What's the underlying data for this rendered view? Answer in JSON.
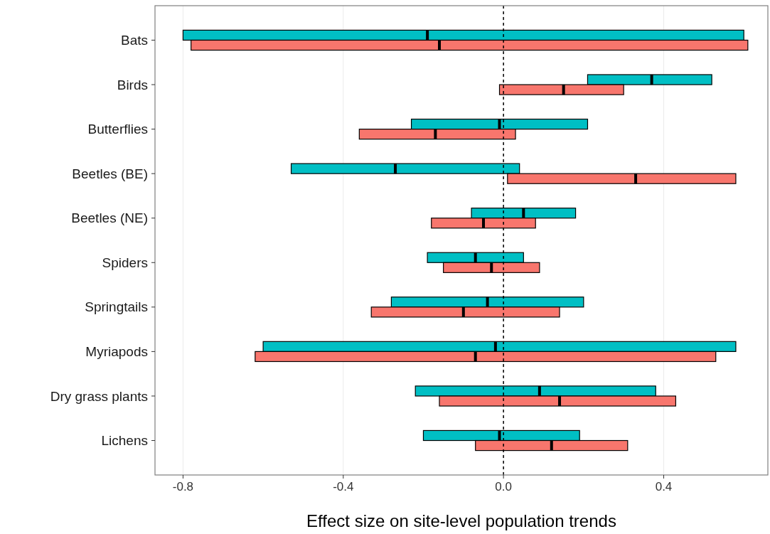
{
  "chart_data": {
    "type": "box",
    "orientation": "horizontal",
    "xlabel": "Effect size on site-level population trends",
    "categories": [
      "Bats",
      "Birds",
      "Butterflies",
      "Beetles (BE)",
      "Beetles (NE)",
      "Spiders",
      "Springtails",
      "Myriapods",
      "Dry grass plants",
      "Lichens"
    ],
    "series": [
      {
        "color": "#00bfc4",
        "boxes": [
          {
            "low": -0.8,
            "q1": -0.8,
            "median": -0.19,
            "q3": 0.6,
            "high": 0.6
          },
          {
            "low": 0.21,
            "q1": 0.21,
            "median": 0.37,
            "q3": 0.52,
            "high": 0.52
          },
          {
            "low": -0.23,
            "q1": -0.23,
            "median": -0.01,
            "q3": 0.21,
            "high": 0.21
          },
          {
            "low": -0.53,
            "q1": -0.53,
            "median": -0.27,
            "q3": 0.04,
            "high": 0.04
          },
          {
            "low": -0.08,
            "q1": -0.08,
            "median": 0.05,
            "q3": 0.18,
            "high": 0.18
          },
          {
            "low": -0.19,
            "q1": -0.19,
            "median": -0.07,
            "q3": 0.05,
            "high": 0.05
          },
          {
            "low": -0.28,
            "q1": -0.28,
            "median": -0.04,
            "q3": 0.2,
            "high": 0.2
          },
          {
            "low": -0.6,
            "q1": -0.6,
            "median": -0.02,
            "q3": 0.58,
            "high": 0.58
          },
          {
            "low": -0.22,
            "q1": -0.22,
            "median": 0.09,
            "q3": 0.38,
            "high": 0.38
          },
          {
            "low": -0.2,
            "q1": -0.2,
            "median": -0.01,
            "q3": 0.19,
            "high": 0.19
          }
        ]
      },
      {
        "color": "#f8766d",
        "boxes": [
          {
            "low": -0.78,
            "q1": -0.78,
            "median": -0.16,
            "q3": 0.61,
            "high": 0.61
          },
          {
            "low": -0.01,
            "q1": -0.01,
            "median": 0.15,
            "q3": 0.3,
            "high": 0.3
          },
          {
            "low": -0.36,
            "q1": -0.36,
            "median": -0.17,
            "q3": 0.03,
            "high": 0.03
          },
          {
            "low": 0.01,
            "q1": 0.01,
            "median": 0.33,
            "q3": 0.58,
            "high": 0.58
          },
          {
            "low": -0.18,
            "q1": -0.18,
            "median": -0.05,
            "q3": 0.08,
            "high": 0.08
          },
          {
            "low": -0.15,
            "q1": -0.15,
            "median": -0.03,
            "q3": 0.09,
            "high": 0.09
          },
          {
            "low": -0.33,
            "q1": -0.33,
            "median": -0.1,
            "q3": 0.14,
            "high": 0.14
          },
          {
            "low": -0.62,
            "q1": -0.62,
            "median": -0.07,
            "q3": 0.53,
            "high": 0.53
          },
          {
            "low": -0.16,
            "q1": -0.16,
            "median": 0.14,
            "q3": 0.43,
            "high": 0.43
          },
          {
            "low": -0.07,
            "q1": -0.07,
            "median": 0.12,
            "q3": 0.31,
            "high": 0.31
          }
        ]
      }
    ],
    "xlim": [
      -0.87,
      0.66
    ],
    "xticks": [
      -0.8,
      -0.4,
      {
        "value": 0,
        "label": "0.0"
      },
      0.4
    ],
    "grid": "x",
    "ref_lines": [
      {
        "axis": "x",
        "value": 0,
        "line_style": "dashed",
        "color": "#000000"
      }
    ]
  }
}
